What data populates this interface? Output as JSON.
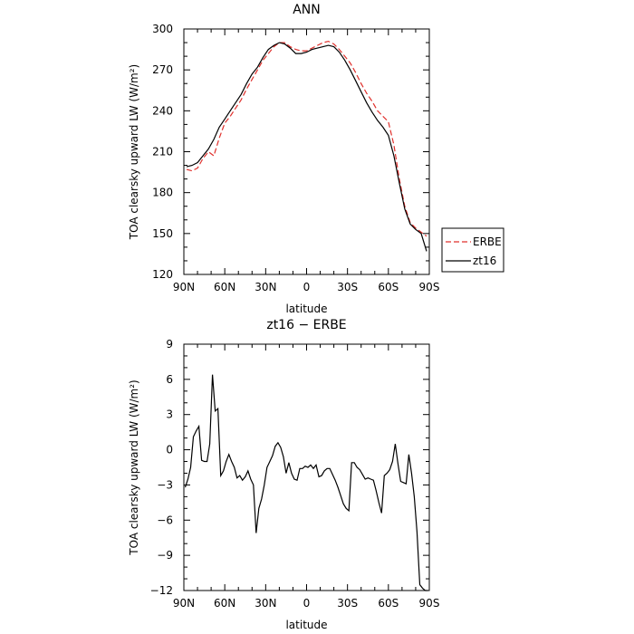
{
  "chart_data": [
    {
      "type": "line",
      "title": "ANN",
      "xlabel": "latitude",
      "ylabel": "TOA clearsky upward LW (W/m²)",
      "xlim": [
        -90,
        90
      ],
      "ylim": [
        120,
        300
      ],
      "xtick_values": [
        -90,
        -60,
        -30,
        0,
        30,
        60,
        90
      ],
      "xtick_labels": [
        "90N",
        "60N",
        "30N",
        "0",
        "30S",
        "60S",
        "90S"
      ],
      "ytick_values": [
        120,
        150,
        180,
        210,
        240,
        270,
        300
      ],
      "ytick_labels": [
        "120",
        "150",
        "180",
        "210",
        "240",
        "270",
        "300"
      ],
      "grid": false,
      "legend_position": "right-bottom-outside",
      "x": [
        -88,
        -84,
        -80,
        -76,
        -72,
        -68,
        -64,
        -60,
        -56,
        -52,
        -48,
        -44,
        -40,
        -36,
        -32,
        -28,
        -24,
        -20,
        -16,
        -12,
        -8,
        -4,
        0,
        4,
        8,
        12,
        16,
        20,
        24,
        28,
        32,
        36,
        40,
        44,
        48,
        52,
        56,
        60,
        64,
        68,
        72,
        76,
        80,
        84,
        88
      ],
      "series": [
        {
          "name": "ERBE",
          "color": "#e0302c",
          "dash": "dashed",
          "values": [
            197,
            196,
            198,
            205,
            210,
            207,
            220,
            231,
            236,
            242,
            248,
            256,
            263,
            270,
            277,
            282,
            287,
            290,
            290,
            287,
            285,
            284,
            284,
            286,
            288,
            290,
            291,
            289,
            285,
            280,
            275,
            268,
            260,
            253,
            247,
            240,
            236,
            232,
            215,
            190,
            170,
            158,
            154,
            151,
            148
          ]
        },
        {
          "name": "zt16",
          "color": "#000000",
          "dash": "solid",
          "values": [
            199,
            200,
            202,
            207,
            212,
            219,
            228,
            234,
            240,
            246,
            252,
            260,
            267,
            272,
            279,
            285,
            288,
            290,
            289,
            286,
            282,
            282,
            283,
            285,
            286,
            287,
            288,
            287,
            283,
            277,
            270,
            262,
            254,
            246,
            239,
            233,
            228,
            222,
            207,
            187,
            168,
            157,
            153,
            150,
            137
          ]
        }
      ]
    },
    {
      "type": "line",
      "title": "zt16 − ERBE",
      "xlabel": "latitude",
      "ylabel": "TOA clearsky upward LW (W/m²)",
      "xlim": [
        -90,
        90
      ],
      "ylim": [
        -12,
        9
      ],
      "xtick_values": [
        -90,
        -60,
        -30,
        0,
        30,
        60,
        90
      ],
      "xtick_labels": [
        "90N",
        "60N",
        "30N",
        "0",
        "30S",
        "60S",
        "90S"
      ],
      "ytick_values": [
        -12,
        -9,
        -6,
        -3,
        0,
        3,
        6,
        9
      ],
      "ytick_labels": [
        "−12",
        "−9",
        "−6",
        "−3",
        "0",
        "3",
        "6",
        "9"
      ],
      "grid": false,
      "x": [
        -89,
        -87,
        -85,
        -83,
        -81,
        -79,
        -77,
        -75,
        -73,
        -71,
        -69,
        -67,
        -65,
        -63,
        -61,
        -59,
        -57,
        -55,
        -53,
        -51,
        -49,
        -47,
        -45,
        -43,
        -41,
        -39,
        -37,
        -35,
        -33,
        -31,
        -29,
        -27,
        -25,
        -23,
        -21,
        -19,
        -17,
        -15,
        -13,
        -11,
        -9,
        -7,
        -5,
        -3,
        -1,
        1,
        3,
        5,
        7,
        9,
        11,
        13,
        15,
        17,
        19,
        21,
        23,
        25,
        27,
        29,
        31,
        33,
        35,
        37,
        39,
        41,
        43,
        45,
        47,
        49,
        51,
        53,
        55,
        57,
        59,
        61,
        63,
        65,
        67,
        69,
        71,
        73,
        75,
        77,
        79,
        81,
        83,
        85,
        87,
        89
      ],
      "series": [
        {
          "name": "zt16 − ERBE",
          "color": "#000000",
          "dash": "solid",
          "values": [
            -3.2,
            -2.5,
            -1.5,
            1.1,
            1.6,
            2.0,
            -0.9,
            -1.0,
            -1.0,
            0.5,
            6.4,
            3.3,
            3.5,
            -2.2,
            -1.8,
            -1.0,
            -0.4,
            -1.0,
            -1.5,
            -2.4,
            -2.2,
            -2.6,
            -2.3,
            -1.8,
            -2.5,
            -3.0,
            -7.1,
            -5.0,
            -4.2,
            -3.0,
            -1.5,
            -1.0,
            -0.5,
            0.3,
            0.6,
            0.2,
            -0.6,
            -2.0,
            -1.1,
            -2.0,
            -2.5,
            -2.6,
            -1.6,
            -1.6,
            -1.4,
            -1.5,
            -1.3,
            -1.6,
            -1.3,
            -2.3,
            -2.2,
            -1.8,
            -1.6,
            -1.6,
            -2.1,
            -2.6,
            -3.2,
            -3.9,
            -4.6,
            -5.0,
            -5.2,
            -1.1,
            -1.1,
            -1.5,
            -1.7,
            -2.1,
            -2.5,
            -2.4,
            -2.5,
            -2.6,
            -3.5,
            -4.5,
            -5.4,
            -2.2,
            -2.0,
            -1.7,
            -1.0,
            0.5,
            -1.2,
            -2.7,
            -2.8,
            -2.9,
            -0.4,
            -2.0,
            -4.0,
            -7.0,
            -11.5,
            -11.8,
            -12.0,
            -12.0
          ]
        }
      ]
    }
  ]
}
